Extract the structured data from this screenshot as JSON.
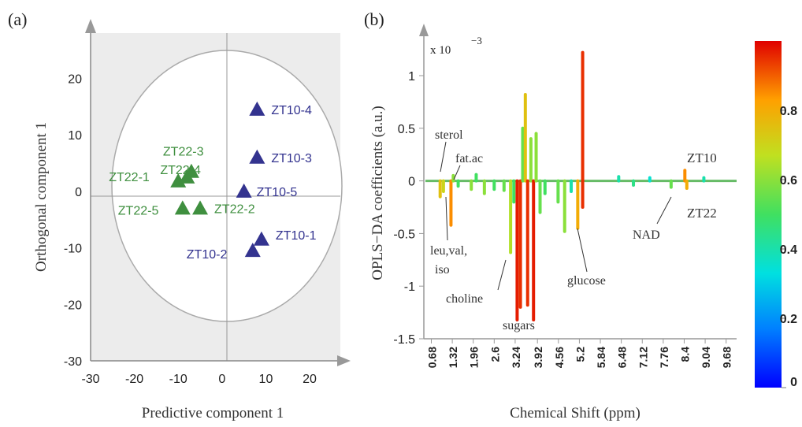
{
  "panel_a_label": "(a)",
  "panel_b_label": "(b)",
  "chart_data": [
    {
      "type": "scatter",
      "title": "",
      "xlabel": "Predictive component 1",
      "ylabel": "Orthogonal component 1",
      "xlim": [
        -30,
        27
      ],
      "ylim": [
        -30,
        28
      ],
      "xticks": [
        "-30",
        "-20",
        "-10",
        "0",
        "10",
        "20"
      ],
      "xtick_values": [
        -30,
        -20,
        -10,
        0,
        10,
        20
      ],
      "yticks": [
        "20",
        "10",
        "0",
        "-10",
        "-20",
        "-30"
      ],
      "ytick_values": [
        20,
        10,
        0,
        -10,
        -20,
        -30
      ],
      "grid": false,
      "colors": {
        "ZT22": "#3f8f3f",
        "ZT10": "#33338f"
      },
      "points": [
        {
          "label": "ZT22-1",
          "group": "ZT22",
          "x": -10,
          "y": 1.8
        },
        {
          "label": "ZT22-3",
          "group": "ZT22",
          "x": -7,
          "y": 3.5
        },
        {
          "label": "ZT22-4",
          "group": "ZT22",
          "x": -8,
          "y": 2.5
        },
        {
          "label": "ZT22-5",
          "group": "ZT22",
          "x": -9,
          "y": -3
        },
        {
          "label": "ZT22-2",
          "group": "ZT22",
          "x": -5,
          "y": -3
        },
        {
          "label": "ZT10-4",
          "group": "ZT10",
          "x": 8,
          "y": 14.5
        },
        {
          "label": "ZT10-3",
          "group": "ZT10",
          "x": 8,
          "y": 6
        },
        {
          "label": "ZT10-5",
          "group": "ZT10",
          "x": 5,
          "y": 0
        },
        {
          "label": "ZT10-1",
          "group": "ZT10",
          "x": 9,
          "y": -8.5
        },
        {
          "label": "ZT10-2",
          "group": "ZT10",
          "x": 7,
          "y": -10.5
        }
      ]
    },
    {
      "type": "line",
      "title": "",
      "xlabel": "Chemical Shift (ppm)",
      "ylabel": "OPLS−DA coefficients (a.u.)",
      "y_multiplier": "x 10",
      "y_exponent": "−3",
      "xlim": [
        0.5,
        10.0
      ],
      "ylim": [
        -1.5,
        1.3
      ],
      "xticks": [
        "0.68",
        "1.32",
        "1.96",
        "2.6",
        "3.24",
        "3.92",
        "4.56",
        "5.2",
        "5.84",
        "6.48",
        "7.12",
        "7.76",
        "8.4",
        "9.04",
        "9.68"
      ],
      "xtick_values": [
        0.68,
        1.32,
        1.96,
        2.6,
        3.24,
        3.92,
        4.56,
        5.2,
        5.84,
        6.48,
        7.12,
        7.76,
        8.4,
        9.04,
        9.68
      ],
      "yticks": [
        "1",
        "0.5",
        "0",
        "-0.5",
        "-1",
        "-1.5"
      ],
      "ytick_values": [
        1,
        0.5,
        0,
        -0.5,
        -1,
        -1.5
      ],
      "colorbar": {
        "min": 0,
        "max": 1,
        "ticks": [
          "0.8",
          "0.6",
          "0.4",
          "0.2",
          "0"
        ],
        "tick_values": [
          0.8,
          0.6,
          0.4,
          0.2,
          0
        ]
      },
      "peaks": [
        {
          "x": 0.95,
          "y": -0.15,
          "c": 0.75
        },
        {
          "x": 1.05,
          "y": -0.1,
          "c": 0.7
        },
        {
          "x": 1.28,
          "y": -0.42,
          "c": 0.85
        },
        {
          "x": 1.35,
          "y": 0.05,
          "c": 0.6
        },
        {
          "x": 1.5,
          "y": -0.05,
          "c": 0.5
        },
        {
          "x": 1.9,
          "y": -0.08,
          "c": 0.6
        },
        {
          "x": 2.05,
          "y": 0.06,
          "c": 0.5
        },
        {
          "x": 2.3,
          "y": -0.12,
          "c": 0.6
        },
        {
          "x": 2.6,
          "y": -0.08,
          "c": 0.5
        },
        {
          "x": 2.9,
          "y": -0.09,
          "c": 0.55
        },
        {
          "x": 3.1,
          "y": -0.68,
          "c": 0.65
        },
        {
          "x": 3.2,
          "y": -0.2,
          "c": 0.5
        },
        {
          "x": 3.3,
          "y": -1.32,
          "c": 0.97
        },
        {
          "x": 3.4,
          "y": -1.2,
          "c": 0.95
        },
        {
          "x": 3.47,
          "y": 0.5,
          "c": 0.55
        },
        {
          "x": 3.55,
          "y": 0.82,
          "c": 0.75
        },
        {
          "x": 3.62,
          "y": -1.18,
          "c": 0.95
        },
        {
          "x": 3.72,
          "y": 0.4,
          "c": 0.6
        },
        {
          "x": 3.8,
          "y": -1.32,
          "c": 0.97
        },
        {
          "x": 3.88,
          "y": 0.45,
          "c": 0.6
        },
        {
          "x": 4.0,
          "y": -0.3,
          "c": 0.55
        },
        {
          "x": 4.15,
          "y": -0.12,
          "c": 0.5
        },
        {
          "x": 4.55,
          "y": -0.2,
          "c": 0.55
        },
        {
          "x": 4.75,
          "y": -0.48,
          "c": 0.6
        },
        {
          "x": 4.95,
          "y": -0.1,
          "c": 0.4
        },
        {
          "x": 5.15,
          "y": -0.45,
          "c": 0.8
        },
        {
          "x": 5.3,
          "y": 1.22,
          "c": 0.95
        },
        {
          "x": 5.3,
          "y": -0.25,
          "c": 0.95
        },
        {
          "x": 6.4,
          "y": 0.04,
          "c": 0.4
        },
        {
          "x": 6.85,
          "y": -0.04,
          "c": 0.45
        },
        {
          "x": 7.35,
          "y": 0.03,
          "c": 0.35
        },
        {
          "x": 8.0,
          "y": -0.06,
          "c": 0.55
        },
        {
          "x": 8.42,
          "y": 0.1,
          "c": 0.85
        },
        {
          "x": 8.48,
          "y": -0.07,
          "c": 0.8
        },
        {
          "x": 9.0,
          "y": 0.03,
          "c": 0.4
        }
      ],
      "annotations": [
        {
          "text": "sterol"
        },
        {
          "text": "fat.ac"
        },
        {
          "text": "leu,val,"
        },
        {
          "text": "iso"
        },
        {
          "text": "choline"
        },
        {
          "text": "sugars"
        },
        {
          "text": "glucose"
        },
        {
          "text": "NAD"
        },
        {
          "text": "ZT10"
        },
        {
          "text": "ZT22"
        }
      ]
    }
  ]
}
